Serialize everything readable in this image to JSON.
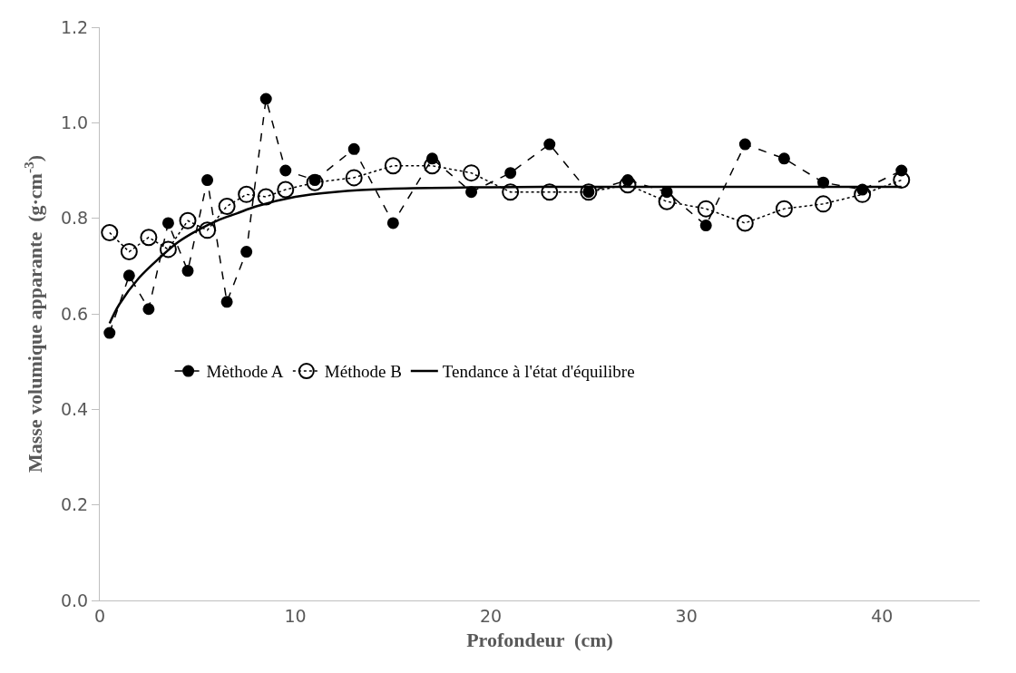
{
  "chart_data": {
    "type": "line",
    "xlabel": "Profondeur  (cm)",
    "ylabel": "Masse volumique apparante  (g·cm$^{-3}$)",
    "xlim": [
      0,
      45
    ],
    "xticks": [
      0,
      10,
      20,
      30,
      40
    ],
    "ylim": [
      0,
      1.2
    ],
    "yticks": [
      {
        "value": 0,
        "label": "0.0"
      },
      {
        "value": 0.2,
        "label": "0.2"
      },
      {
        "value": 0.4,
        "label": "0.4"
      },
      {
        "value": 0.6,
        "label": "0.6"
      },
      {
        "value": 0.8,
        "label": "0.8"
      },
      {
        "value": 1.0,
        "label": "1.0"
      },
      {
        "value": 1.2,
        "label": "1.2"
      }
    ],
    "legend": "left",
    "series": [
      {
        "name": "Mèthode A",
        "color": "#000000",
        "marker": "circle",
        "line_style": "dashed",
        "x": [
          0.5,
          1.5,
          2.5,
          3.5,
          4.5,
          5.5,
          6.5,
          7.5,
          8.5,
          9.5,
          11,
          13,
          15,
          17,
          19,
          21,
          23,
          25,
          27,
          29,
          31,
          33,
          35,
          37,
          39,
          41
        ],
        "values": [
          0.56,
          0.68,
          0.61,
          0.79,
          0.69,
          0.88,
          0.625,
          0.73,
          1.05,
          0.9,
          0.88,
          0.945,
          0.79,
          0.925,
          0.855,
          0.895,
          0.955,
          0.855,
          0.88,
          0.855,
          0.785,
          0.955,
          0.925,
          0.875,
          0.86,
          0.9
        ]
      },
      {
        "name": "Méthode B",
        "color": "#000000",
        "marker": "circle",
        "line_style": "dotted",
        "x": [
          0.5,
          1.5,
          2.5,
          3.5,
          4.5,
          5.5,
          6.5,
          7.5,
          8.5,
          9.5,
          11,
          13,
          15,
          17,
          19,
          21,
          23,
          25,
          27,
          29,
          31,
          33,
          35,
          37,
          39,
          41
        ],
        "values": [
          0.77,
          0.73,
          0.76,
          0.735,
          0.795,
          0.775,
          0.825,
          0.85,
          0.845,
          0.86,
          0.875,
          0.885,
          0.91,
          0.91,
          0.895,
          0.855,
          0.855,
          0.855,
          0.87,
          0.835,
          0.82,
          0.79,
          0.82,
          0.83,
          0.85,
          0.88
        ]
      },
      {
        "name": "Tendance à l'état d'équilibre",
        "color": "#000000",
        "marker": "none",
        "line_style": "solid",
        "x": [
          0.5,
          1,
          2,
          3,
          4,
          5,
          6,
          7,
          8,
          10,
          12,
          15,
          20,
          25,
          30,
          35,
          41
        ],
        "values": [
          0.58,
          0.62,
          0.675,
          0.715,
          0.75,
          0.775,
          0.795,
          0.81,
          0.825,
          0.845,
          0.855,
          0.862,
          0.865,
          0.866,
          0.866,
          0.866,
          0.866
        ]
      }
    ]
  }
}
